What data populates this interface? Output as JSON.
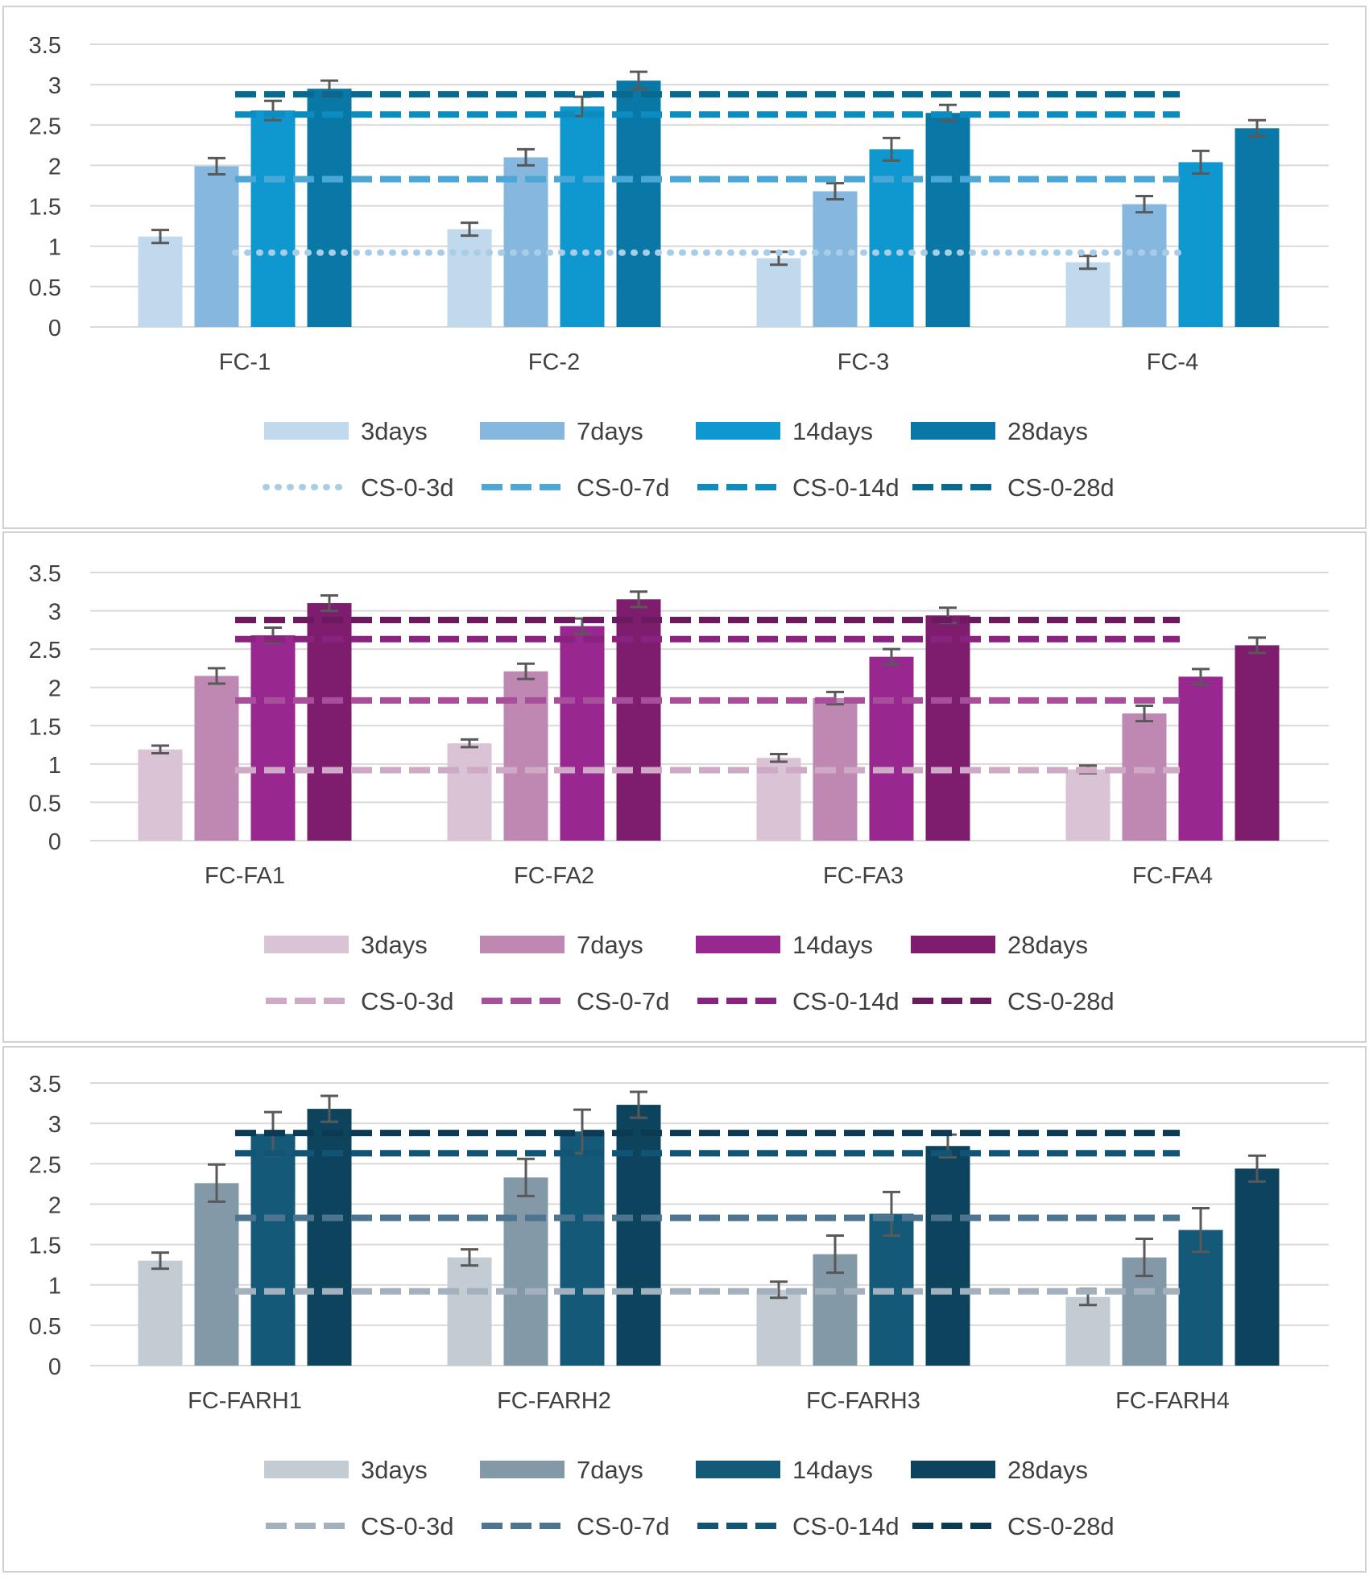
{
  "chart_data": [
    {
      "type": "bar",
      "categories": [
        "FC-1",
        "FC-2",
        "FC-3",
        "FC-4"
      ],
      "ylim": [
        0,
        3.5
      ],
      "yticks": [
        "0",
        "0.5",
        "1",
        "1.5",
        "2",
        "2.5",
        "3",
        "3.5"
      ],
      "grid": true,
      "legend_position": "bottom",
      "series": [
        {
          "name": "3days",
          "color": "#c1d9ec",
          "values": [
            1.12,
            1.21,
            0.85,
            0.8
          ],
          "errors": [
            0.08,
            0.08,
            0.08,
            0.08
          ]
        },
        {
          "name": "7days",
          "color": "#86b8df",
          "values": [
            1.99,
            2.1,
            1.68,
            1.52
          ],
          "errors": [
            0.1,
            0.1,
            0.1,
            0.1
          ]
        },
        {
          "name": "14days",
          "color": "#0e98cf",
          "values": [
            2.68,
            2.73,
            2.2,
            2.04
          ],
          "errors": [
            0.12,
            0.12,
            0.14,
            0.14
          ]
        },
        {
          "name": "28days",
          "color": "#0a78a6",
          "values": [
            2.95,
            3.05,
            2.65,
            2.46
          ],
          "errors": [
            0.1,
            0.11,
            0.1,
            0.1
          ]
        }
      ],
      "reference_lines": [
        {
          "name": "CS-0-3d",
          "value": 0.92,
          "color": "#a9cde5",
          "style": "dotted"
        },
        {
          "name": "CS-0-7d",
          "value": 1.83,
          "color": "#4ba8d6",
          "style": "dashed"
        },
        {
          "name": "CS-0-14d",
          "value": 2.63,
          "color": "#0d8cc0",
          "style": "dashed"
        },
        {
          "name": "CS-0-28d",
          "value": 2.88,
          "color": "#086a90",
          "style": "dashed"
        }
      ]
    },
    {
      "type": "bar",
      "categories": [
        "FC-FA1",
        "FC-FA2",
        "FC-FA3",
        "FC-FA4"
      ],
      "ylim": [
        0,
        3.5
      ],
      "yticks": [
        "0",
        "0.5",
        "1",
        "1.5",
        "2",
        "2.5",
        "3",
        "3.5"
      ],
      "grid": true,
      "legend_position": "bottom",
      "series": [
        {
          "name": "3days",
          "color": "#dbc3d6",
          "values": [
            1.19,
            1.27,
            1.08,
            0.93
          ],
          "errors": [
            0.05,
            0.05,
            0.05,
            0.05
          ]
        },
        {
          "name": "7days",
          "color": "#bf88b3",
          "values": [
            2.15,
            2.21,
            1.86,
            1.66
          ],
          "errors": [
            0.1,
            0.1,
            0.08,
            0.1
          ]
        },
        {
          "name": "14days",
          "color": "#98278f",
          "values": [
            2.68,
            2.8,
            2.4,
            2.14
          ],
          "errors": [
            0.1,
            0.1,
            0.1,
            0.1
          ]
        },
        {
          "name": "28days",
          "color": "#7e1d6e",
          "values": [
            3.1,
            3.15,
            2.94,
            2.55
          ],
          "errors": [
            0.1,
            0.1,
            0.1,
            0.1
          ]
        }
      ],
      "reference_lines": [
        {
          "name": "CS-0-3d",
          "value": 0.92,
          "color": "#ceaac6",
          "style": "dashed"
        },
        {
          "name": "CS-0-7d",
          "value": 1.83,
          "color": "#a84f9b",
          "style": "dashed"
        },
        {
          "name": "CS-0-14d",
          "value": 2.63,
          "color": "#8a237f",
          "style": "dashed"
        },
        {
          "name": "CS-0-28d",
          "value": 2.88,
          "color": "#6b1a60",
          "style": "dashed"
        }
      ]
    },
    {
      "type": "bar",
      "categories": [
        "FC-FARH1",
        "FC-FARH2",
        "FC-FARH3",
        "FC-FARH4"
      ],
      "ylim": [
        0,
        3.5
      ],
      "yticks": [
        "0",
        "0.5",
        "1",
        "1.5",
        "2",
        "2.5",
        "3",
        "3.5"
      ],
      "grid": true,
      "legend_position": "bottom",
      "series": [
        {
          "name": "3days",
          "color": "#c3cbd3",
          "values": [
            1.3,
            1.34,
            0.94,
            0.85
          ],
          "errors": [
            0.1,
            0.1,
            0.1,
            0.1
          ]
        },
        {
          "name": "7days",
          "color": "#8499a8",
          "values": [
            2.26,
            2.33,
            1.38,
            1.34
          ],
          "errors": [
            0.23,
            0.23,
            0.23,
            0.23
          ]
        },
        {
          "name": "14days",
          "color": "#145a78",
          "values": [
            2.87,
            2.9,
            1.88,
            1.68
          ],
          "errors": [
            0.27,
            0.27,
            0.27,
            0.27
          ]
        },
        {
          "name": "28days",
          "color": "#0d435c",
          "values": [
            3.18,
            3.23,
            2.72,
            2.44
          ],
          "errors": [
            0.16,
            0.16,
            0.14,
            0.16
          ]
        }
      ],
      "reference_lines": [
        {
          "name": "CS-0-3d",
          "value": 0.92,
          "color": "#a2b1bd",
          "style": "dashed"
        },
        {
          "name": "CS-0-7d",
          "value": 1.83,
          "color": "#4e7590",
          "style": "dashed"
        },
        {
          "name": "CS-0-14d",
          "value": 2.63,
          "color": "#125473",
          "style": "dashed"
        },
        {
          "name": "CS-0-28d",
          "value": 2.88,
          "color": "#0b3a52",
          "style": "dashed"
        }
      ]
    }
  ]
}
